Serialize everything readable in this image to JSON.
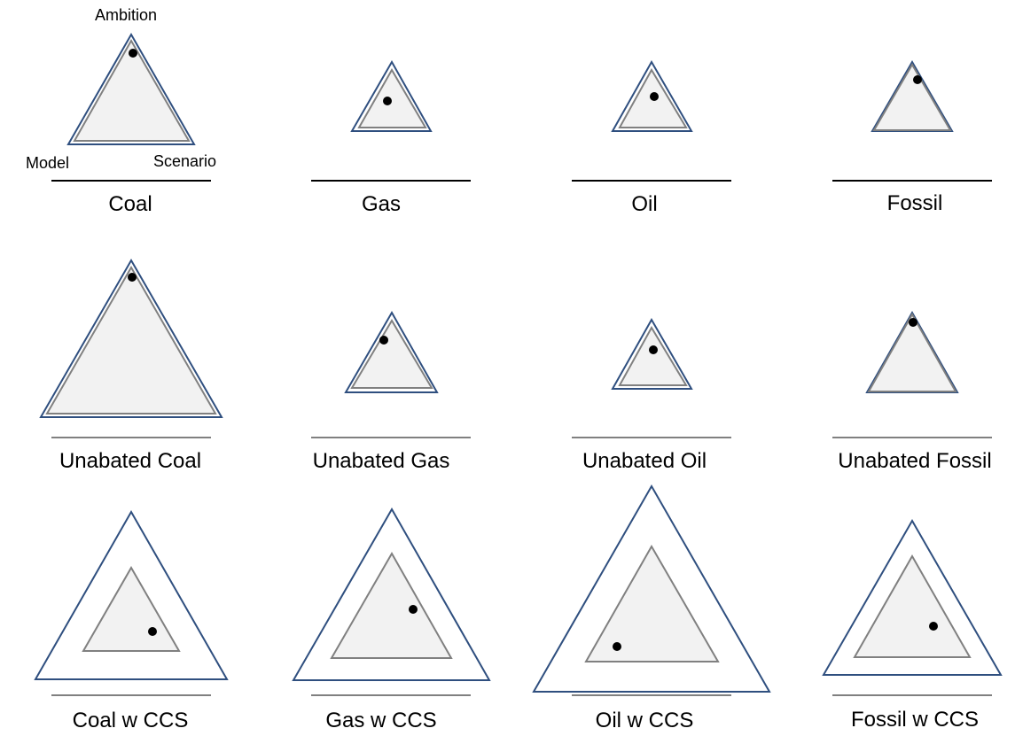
{
  "axes": {
    "top": "Ambition",
    "left": "Model",
    "right": "Scenario"
  },
  "colors": {
    "outer_stroke": "#2f4f7f",
    "inner_stroke": "#808080",
    "inner_fill": "#f2f2f2",
    "dot": "#000000"
  },
  "panels": [
    {
      "label": "Coal"
    },
    {
      "label": "Gas"
    },
    {
      "label": "Oil"
    },
    {
      "label": "Fossil"
    },
    {
      "label": "Unabated Coal"
    },
    {
      "label": "Unabated Gas"
    },
    {
      "label": "Unabated Oil"
    },
    {
      "label": "Unabated Fossil"
    },
    {
      "label": "Coal w CCS"
    },
    {
      "label": "Gas w CCS"
    },
    {
      "label": "Oil w CCS"
    },
    {
      "label": "Fossil w CCS"
    }
  ]
}
